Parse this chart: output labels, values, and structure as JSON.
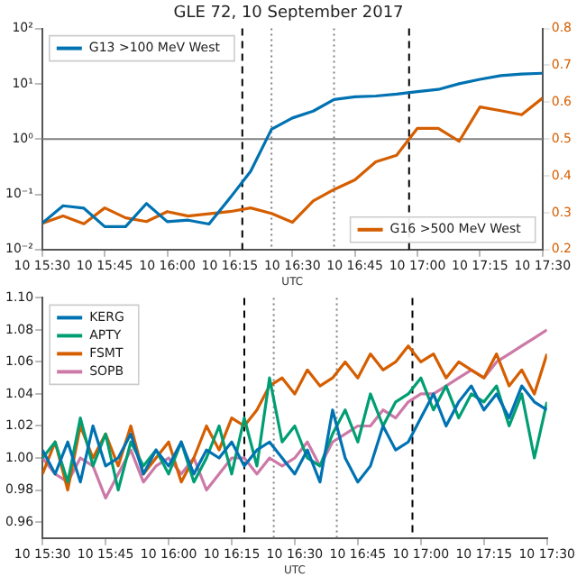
{
  "chart_data": [
    {
      "type": "line",
      "title": "GLE 72, 10 September 2017",
      "xlabel": "UTC",
      "log": "y",
      "grid": false,
      "legend": "top left",
      "marker": "none",
      "line_style": "solid",
      "x": [
        "2017-09-10T15:30",
        "2017-09-10T15:35",
        "2017-09-10T15:40",
        "2017-09-10T15:45",
        "2017-09-10T15:50",
        "2017-09-10T15:55",
        "2017-09-10T16:00",
        "2017-09-10T16:05",
        "2017-09-10T16:10",
        "2017-09-10T16:15",
        "2017-09-10T16:20",
        "2017-09-10T16:25",
        "2017-09-10T16:30",
        "2017-09-10T16:35",
        "2017-09-10T16:40",
        "2017-09-10T16:45",
        "2017-09-10T16:50",
        "2017-09-10T16:55",
        "2017-09-10T17:00",
        "2017-09-10T17:05",
        "2017-09-10T17:10",
        "2017-09-10T17:15",
        "2017-09-10T17:20",
        "2017-09-10T17:25",
        "2017-09-10T17:30"
      ],
      "xlim": [
        "2017-09-10T15:30",
        "2017-09-10T17:30"
      ],
      "xticks": [
        {
          "value": "2017-09-10T15:30",
          "label": "10 15:30"
        },
        {
          "value": "2017-09-10T15:45",
          "label": "10 15:45"
        },
        {
          "value": "2017-09-10T16:00",
          "label": "10 16:00"
        },
        {
          "value": "2017-09-10T16:15",
          "label": "10 16:15"
        },
        {
          "value": "2017-09-10T16:30",
          "label": "10 16:30"
        },
        {
          "value": "2017-09-10T16:45",
          "label": "10 16:45"
        },
        {
          "value": "2017-09-10T17:00",
          "label": "10 17:00"
        },
        {
          "value": "2017-09-10T17:15",
          "label": "10 17:15"
        },
        {
          "value": "2017-09-10T17:30",
          "label": "10 17:30"
        }
      ],
      "ylim": [
        0.01,
        100
      ],
      "yticks": [
        {
          "value": 0.01,
          "label": "10⁻²"
        },
        {
          "value": 0.1,
          "label": "10⁻¹"
        },
        {
          "value": 1,
          "label": "10⁰"
        },
        {
          "value": 10,
          "label": "10¹"
        },
        {
          "value": 100,
          "label": "10²"
        }
      ],
      "y2lim": [
        0.2,
        0.8
      ],
      "y2ticks": [
        0.2,
        0.3,
        0.4,
        0.5,
        0.6,
        0.7,
        0.8
      ],
      "series": [
        {
          "name": "G13 >100 MeV West",
          "color": "#0072b2",
          "values": [
            0.03,
            0.062,
            0.056,
            0.026,
            0.026,
            0.068,
            0.032,
            0.034,
            0.029,
            0.085,
            0.26,
            1.5,
            2.4,
            3.2,
            5.2,
            5.8,
            6.0,
            6.5,
            7.2,
            7.9,
            10,
            12,
            14,
            15,
            15.5
          ]
        },
        {
          "name": "G16 >500 MeV West",
          "color": "#d55e00",
          "axis": "y2",
          "values": [
            0.271,
            0.291,
            0.27,
            0.313,
            0.286,
            0.276,
            0.303,
            0.291,
            0.297,
            0.303,
            0.313,
            0.298,
            0.274,
            0.332,
            0.363,
            0.389,
            0.438,
            0.456,
            0.529,
            0.529,
            0.494,
            0.587,
            0.577,
            0.566,
            0.611
          ]
        }
      ],
      "ref_lines": [
        {
          "axis": "y",
          "value": 1,
          "color": "#808080",
          "line_style": "solid"
        },
        {
          "axis": "x",
          "value": "2017-09-10T16:18",
          "color": "#000000",
          "line_style": "dashed"
        },
        {
          "axis": "x",
          "value": "2017-09-10T16:25",
          "color": "#808080",
          "line_style": "dotted"
        },
        {
          "axis": "x",
          "value": "2017-09-10T16:40",
          "color": "#808080",
          "line_style": "dotted"
        },
        {
          "axis": "x",
          "value": "2017-09-10T16:58",
          "color": "#000000",
          "line_style": "dashed"
        }
      ]
    },
    {
      "type": "line",
      "xlabel": "UTC",
      "grid": false,
      "legend": "top left",
      "marker": "none",
      "line_style": "solid",
      "x": [
        "2017-09-10T15:30",
        "2017-09-10T15:33",
        "2017-09-10T15:36",
        "2017-09-10T15:39",
        "2017-09-10T15:42",
        "2017-09-10T15:45",
        "2017-09-10T15:48",
        "2017-09-10T15:51",
        "2017-09-10T15:54",
        "2017-09-10T15:57",
        "2017-09-10T16:00",
        "2017-09-10T16:03",
        "2017-09-10T16:06",
        "2017-09-10T16:09",
        "2017-09-10T16:12",
        "2017-09-10T16:15",
        "2017-09-10T16:18",
        "2017-09-10T16:21",
        "2017-09-10T16:24",
        "2017-09-10T16:27",
        "2017-09-10T16:30",
        "2017-09-10T16:33",
        "2017-09-10T16:36",
        "2017-09-10T16:39",
        "2017-09-10T16:42",
        "2017-09-10T16:45",
        "2017-09-10T16:48",
        "2017-09-10T16:51",
        "2017-09-10T16:54",
        "2017-09-10T16:57",
        "2017-09-10T17:00",
        "2017-09-10T17:03",
        "2017-09-10T17:06",
        "2017-09-10T17:09",
        "2017-09-10T17:12",
        "2017-09-10T17:15",
        "2017-09-10T17:18",
        "2017-09-10T17:21",
        "2017-09-10T17:24",
        "2017-09-10T17:27",
        "2017-09-10T17:30"
      ],
      "xlim": [
        "2017-09-10T15:30",
        "2017-09-10T17:30"
      ],
      "xticks": [
        {
          "value": "2017-09-10T15:30",
          "label": "10 15:30"
        },
        {
          "value": "2017-09-10T15:45",
          "label": "10 15:45"
        },
        {
          "value": "2017-09-10T16:00",
          "label": "10 16:00"
        },
        {
          "value": "2017-09-10T16:15",
          "label": "10 16:15"
        },
        {
          "value": "2017-09-10T16:30",
          "label": "10 16:30"
        },
        {
          "value": "2017-09-10T16:45",
          "label": "10 16:45"
        },
        {
          "value": "2017-09-10T17:00",
          "label": "10 17:00"
        },
        {
          "value": "2017-09-10T17:15",
          "label": "10 17:15"
        },
        {
          "value": "2017-09-10T17:30",
          "label": "10 17:30"
        }
      ],
      "ylim": [
        0.95,
        1.1
      ],
      "yticks": [
        {
          "value": 0.96,
          "label": "0.96"
        },
        {
          "value": 0.98,
          "label": "0.98"
        },
        {
          "value": 1,
          "label": "1.00"
        },
        {
          "value": 1.02,
          "label": "1.02"
        },
        {
          "value": 1.04,
          "label": "1.04"
        },
        {
          "value": 1.06,
          "label": "1.06"
        },
        {
          "value": 1.08,
          "label": "1.08"
        },
        {
          "value": 1.1,
          "label": "1.10"
        }
      ],
      "series": [
        {
          "name": "KERG",
          "color": "#0072b2",
          "values": [
            1.005,
            0.99,
            1.01,
            0.985,
            1.02,
            0.995,
            1.0,
            1.015,
            0.99,
            1.005,
            0.995,
            1.01,
            0.99,
            1.005,
            1.0,
            1.01,
            0.995,
            1.005,
            1.01,
            1.0,
            0.99,
            1.005,
            0.985,
            1.03,
            1.0,
            0.985,
            0.995,
            1.02,
            1.005,
            1.01,
            1.025,
            1.04,
            1.02,
            1.035,
            1.045,
            1.03,
            1.04,
            1.025,
            1.045,
            1.035,
            1.03
          ]
        },
        {
          "name": "APTY",
          "color": "#009e73",
          "values": [
            1.0,
            1.01,
            0.985,
            1.025,
            0.995,
            1.015,
            0.98,
            1.01,
            0.995,
            1.005,
            0.99,
            1.01,
            0.985,
            1.0,
            1.02,
            0.99,
            1.025,
            0.995,
            1.05,
            1.01,
            1.02,
            1.0,
            0.995,
            1.015,
            1.03,
            1.01,
            1.04,
            1.02,
            1.035,
            1.04,
            1.05,
            1.03,
            1.045,
            1.025,
            1.04,
            1.035,
            1.045,
            1.02,
            1.04,
            1.0,
            1.035
          ]
        },
        {
          "name": "FSMT",
          "color": "#d55e00",
          "values": [
            0.99,
            1.01,
            0.98,
            1.02,
            1.0,
            1.015,
            0.995,
            1.02,
            0.99,
            1.0,
            1.01,
            0.985,
            1.0,
            1.02,
            1.005,
            1.025,
            1.02,
            1.03,
            1.045,
            1.05,
            1.04,
            1.055,
            1.045,
            1.05,
            1.06,
            1.05,
            1.065,
            1.055,
            1.06,
            1.07,
            1.06,
            1.065,
            1.05,
            1.06,
            1.055,
            1.05,
            1.065,
            1.045,
            1.055,
            1.04,
            1.065
          ]
        },
        {
          "name": "SOPB",
          "color": "#cc79a7",
          "values": [
            1.0,
            0.99,
            0.985,
            1.0,
            0.995,
            0.975,
            0.99,
            1.005,
            0.985,
            0.995,
            1.0,
            0.99,
            1.0,
            0.98,
            0.99,
            1.0,
            1.0,
            0.99,
            1.0,
            0.995,
            1.0,
            1.01,
            0.995,
            1.01,
            1.015,
            1.02,
            1.02,
            1.03,
            1.025,
            1.035,
            1.04,
            1.04,
            1.045,
            1.05,
            1.055,
            1.05,
            1.06,
            1.065,
            1.07,
            1.075,
            1.08
          ]
        }
      ],
      "ref_lines": [
        {
          "axis": "x",
          "value": "2017-09-10T16:18",
          "color": "#000000",
          "line_style": "dashed"
        },
        {
          "axis": "x",
          "value": "2017-09-10T16:25",
          "color": "#808080",
          "line_style": "dotted"
        },
        {
          "axis": "x",
          "value": "2017-09-10T16:40",
          "color": "#808080",
          "line_style": "dotted"
        },
        {
          "axis": "x",
          "value": "2017-09-10T16:58",
          "color": "#000000",
          "line_style": "dashed"
        }
      ]
    }
  ]
}
